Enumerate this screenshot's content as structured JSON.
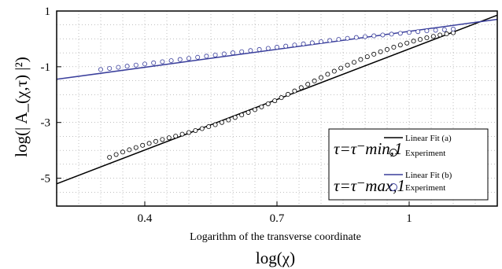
{
  "chart_data": {
    "type": "scatter",
    "xlabel": "Logarithm of the transverse coordinate",
    "xlabel_symbol": "log(χ)",
    "ylabel": "log(| A_(χ,τ) |²)",
    "xlim": [
      0.2,
      1.2
    ],
    "ylim": [
      -6,
      1
    ],
    "x_ticks": [
      0.4,
      0.7,
      1
    ],
    "x_tick_labels": [
      "0.4",
      "0.7",
      "1"
    ],
    "y_ticks": [
      1,
      -1,
      -3,
      -5
    ],
    "y_tick_labels": [
      "1",
      "-1",
      "-3",
      "-5"
    ],
    "grid": true,
    "legend_position": "bottom-right",
    "legend": {
      "group_a_symbol": "τ=τ⁻min,1",
      "group_b_symbol": "τ=τ⁻max,1",
      "fit_a_label": "Linear Fit (a)",
      "exp_a_label": "Experiment",
      "fit_b_label": "Linear Fit (b)",
      "exp_b_label": "Experiment"
    },
    "series": [
      {
        "name": "Linear Fit (a)",
        "kind": "line",
        "color": "#000000",
        "x": [
          0.2,
          1.2
        ],
        "y": [
          -5.2,
          0.85
        ]
      },
      {
        "name": "Experiment",
        "group": "a",
        "kind": "markers",
        "color": "#000000",
        "x": [
          0.32,
          0.335,
          0.35,
          0.365,
          0.38,
          0.395,
          0.41,
          0.425,
          0.44,
          0.455,
          0.47,
          0.485,
          0.5,
          0.515,
          0.53,
          0.545,
          0.56,
          0.575,
          0.59,
          0.605,
          0.62,
          0.635,
          0.65,
          0.665,
          0.68,
          0.695,
          0.71,
          0.725,
          0.74,
          0.755,
          0.77,
          0.785,
          0.8,
          0.815,
          0.83,
          0.845,
          0.86,
          0.875,
          0.89,
          0.905,
          0.92,
          0.935,
          0.95,
          0.965,
          0.98,
          0.995,
          1.01,
          1.025,
          1.04,
          1.055,
          1.07,
          1.085,
          1.1
        ],
        "y": [
          -4.25,
          -4.15,
          -4.06,
          -3.98,
          -3.9,
          -3.82,
          -3.75,
          -3.68,
          -3.61,
          -3.55,
          -3.49,
          -3.42,
          -3.36,
          -3.29,
          -3.22,
          -3.15,
          -3.08,
          -3.0,
          -2.91,
          -2.82,
          -2.73,
          -2.64,
          -2.54,
          -2.44,
          -2.33,
          -2.22,
          -2.11,
          -1.99,
          -1.87,
          -1.75,
          -1.63,
          -1.51,
          -1.39,
          -1.27,
          -1.16,
          -1.05,
          -0.94,
          -0.84,
          -0.74,
          -0.64,
          -0.55,
          -0.46,
          -0.38,
          -0.3,
          -0.22,
          -0.15,
          -0.08,
          -0.02,
          0.04,
          0.09,
          0.14,
          0.18,
          0.22
        ]
      },
      {
        "name": "Linear Fit (b)",
        "kind": "line",
        "color": "#3a3f9c",
        "x": [
          0.2,
          1.2
        ],
        "y": [
          -1.45,
          0.7
        ]
      },
      {
        "name": "Experiment",
        "group": "b",
        "kind": "markers",
        "color": "#3a3f9c",
        "x": [
          0.3,
          0.32,
          0.34,
          0.36,
          0.38,
          0.4,
          0.42,
          0.44,
          0.46,
          0.48,
          0.5,
          0.52,
          0.54,
          0.56,
          0.58,
          0.6,
          0.62,
          0.64,
          0.66,
          0.68,
          0.7,
          0.72,
          0.74,
          0.76,
          0.78,
          0.8,
          0.82,
          0.84,
          0.86,
          0.88,
          0.9,
          0.92,
          0.94,
          0.96,
          0.98,
          1.0,
          1.02,
          1.04,
          1.06,
          1.08,
          1.1
        ],
        "y": [
          -1.1,
          -1.06,
          -1.02,
          -0.98,
          -0.94,
          -0.9,
          -0.86,
          -0.82,
          -0.78,
          -0.74,
          -0.7,
          -0.66,
          -0.62,
          -0.58,
          -0.54,
          -0.5,
          -0.46,
          -0.42,
          -0.38,
          -0.34,
          -0.3,
          -0.26,
          -0.22,
          -0.18,
          -0.14,
          -0.1,
          -0.06,
          -0.02,
          0.02,
          0.05,
          0.08,
          0.11,
          0.14,
          0.17,
          0.2,
          0.23,
          0.26,
          0.29,
          0.31,
          0.33,
          0.35
        ]
      }
    ]
  }
}
